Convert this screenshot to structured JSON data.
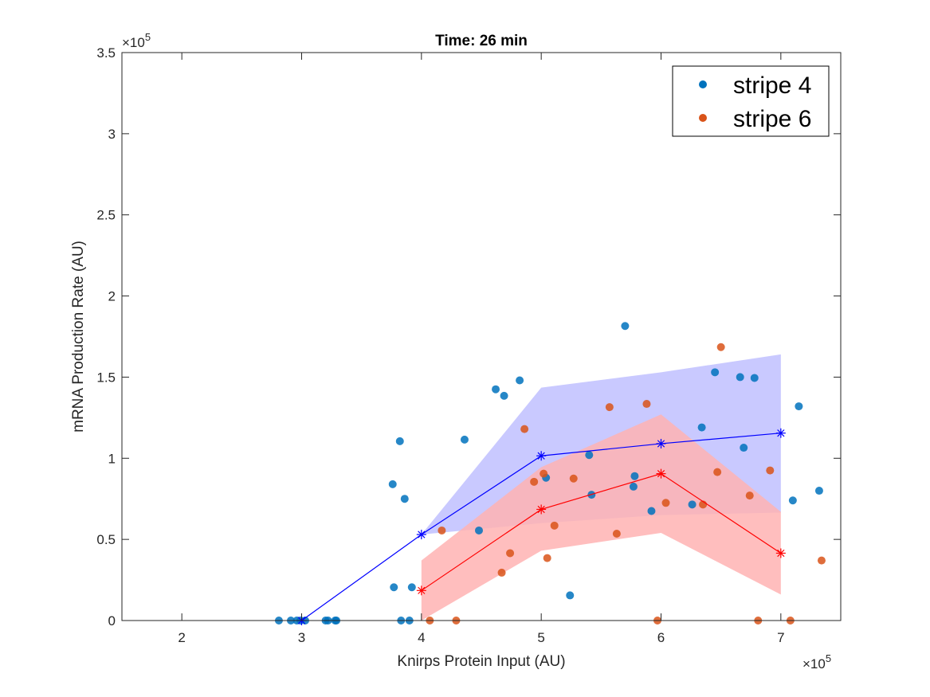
{
  "chart_data": {
    "type": "scatter",
    "title": "Time: 26 min",
    "xlabel": "Knirps Protein Input (AU)",
    "ylabel": "mRNA Production Rate (AU)",
    "x_exponent_label": "×10",
    "x_exponent_power": "5",
    "y_exponent_label": "×10",
    "y_exponent_power": "5",
    "xlim": [
      150000,
      750000
    ],
    "ylim": [
      0,
      350000
    ],
    "xticks": [
      200000,
      300000,
      400000,
      500000,
      600000,
      700000
    ],
    "xtick_labels": [
      "2",
      "3",
      "4",
      "5",
      "6",
      "7"
    ],
    "yticks": [
      0,
      50000,
      100000,
      150000,
      200000,
      250000,
      300000,
      350000
    ],
    "ytick_labels": [
      "0",
      "0.5",
      "1",
      "1.5",
      "2",
      "2.5",
      "3",
      "3.5"
    ],
    "grid": false,
    "legend_position": "top-right",
    "series": [
      {
        "name": "stripe 4",
        "kind": "scatter",
        "color": "#0072BD",
        "points": [
          [
            281000,
            0
          ],
          [
            291000,
            0
          ],
          [
            296000,
            0
          ],
          [
            299000,
            0
          ],
          [
            303000,
            0
          ],
          [
            320000,
            0
          ],
          [
            322000,
            0
          ],
          [
            328000,
            0
          ],
          [
            329000,
            0
          ],
          [
            376000,
            84000
          ],
          [
            377000,
            20500
          ],
          [
            382000,
            110500
          ],
          [
            383000,
            0
          ],
          [
            386000,
            75000
          ],
          [
            390000,
            0
          ],
          [
            392000,
            20500
          ],
          [
            436000,
            111500
          ],
          [
            448000,
            55500
          ],
          [
            462000,
            142500
          ],
          [
            469000,
            138500
          ],
          [
            482000,
            148000
          ],
          [
            504000,
            88000
          ],
          [
            524000,
            15500
          ],
          [
            540000,
            102000
          ],
          [
            542000,
            77500
          ],
          [
            570000,
            181500
          ],
          [
            577000,
            82500
          ],
          [
            578000,
            89000
          ],
          [
            592000,
            67500
          ],
          [
            626000,
            71500
          ],
          [
            634000,
            119000
          ],
          [
            645000,
            153000
          ],
          [
            666000,
            150000
          ],
          [
            669000,
            106500
          ],
          [
            678000,
            149500
          ],
          [
            710000,
            74000
          ],
          [
            715000,
            132000
          ],
          [
            732000,
            80000
          ]
        ]
      },
      {
        "name": "stripe 6",
        "kind": "scatter",
        "color": "#D95319",
        "points": [
          [
            417000,
            55500
          ],
          [
            407000,
            0
          ],
          [
            429000,
            0
          ],
          [
            467000,
            29500
          ],
          [
            474000,
            41500
          ],
          [
            486000,
            118000
          ],
          [
            494000,
            85500
          ],
          [
            502000,
            90500
          ],
          [
            505000,
            38500
          ],
          [
            511000,
            58500
          ],
          [
            527000,
            87500
          ],
          [
            557000,
            131500
          ],
          [
            563000,
            53500
          ],
          [
            588000,
            133500
          ],
          [
            597000,
            0
          ],
          [
            604000,
            72500
          ],
          [
            635000,
            71500
          ],
          [
            647000,
            91500
          ],
          [
            650000,
            168500
          ],
          [
            674000,
            77000
          ],
          [
            681000,
            0
          ],
          [
            691000,
            92500
          ],
          [
            708000,
            0
          ],
          [
            734000,
            37000
          ]
        ]
      },
      {
        "kind": "line",
        "color": "#0000FF",
        "points": [
          [
            300000,
            0
          ],
          [
            400000,
            53000
          ],
          [
            500000,
            101500
          ],
          [
            600000,
            109000
          ],
          [
            700000,
            115500
          ]
        ],
        "band_upper": [
          0,
          53000,
          143500,
          153000,
          164000
        ],
        "band_lower": [
          0,
          53000,
          60000,
          65000,
          66500
        ],
        "band_color": "#BFBFFF"
      },
      {
        "kind": "line",
        "color": "#FF0000",
        "points": [
          [
            400000,
            18500
          ],
          [
            500000,
            68500
          ],
          [
            600000,
            90500
          ],
          [
            700000,
            41500
          ]
        ],
        "band_upper": [
          37000,
          94500,
          127000,
          67000
        ],
        "band_lower": [
          0,
          43000,
          54000,
          16000
        ],
        "band_color": "#FFB3B3"
      }
    ]
  }
}
